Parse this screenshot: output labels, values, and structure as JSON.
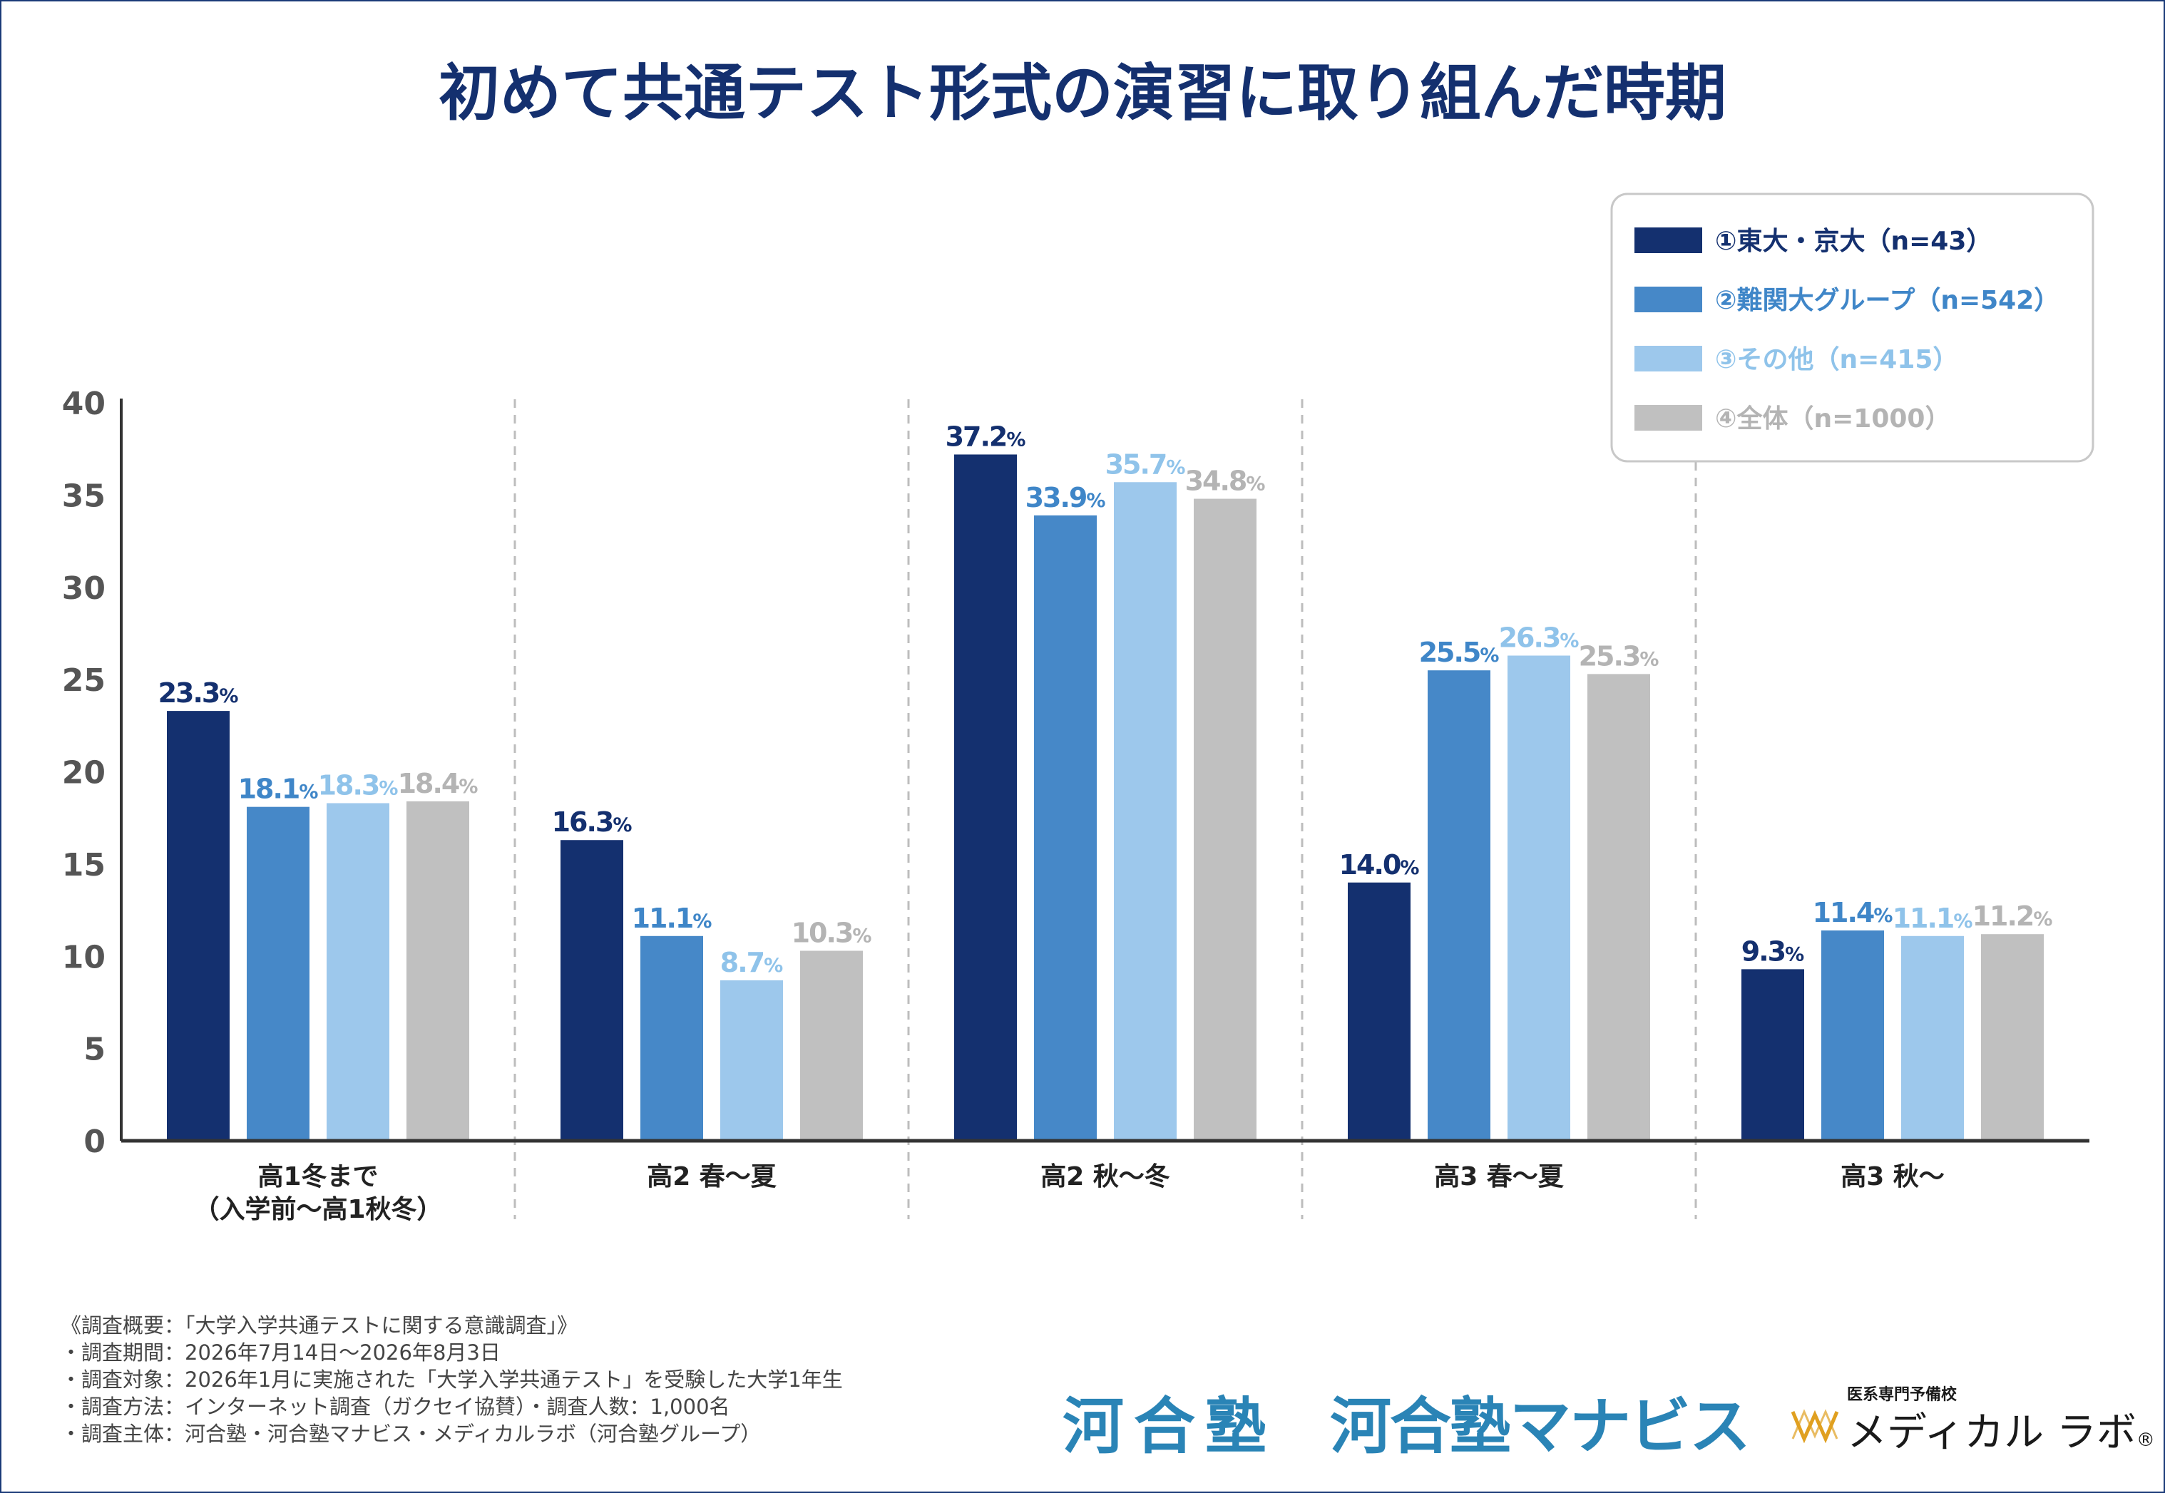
{
  "chart_data": {
    "type": "bar",
    "title": "初めて共通テスト形式の演習に取り組んだ時期",
    "categories": [
      [
        "高1冬まで",
        "（入学前〜高1秋冬）"
      ],
      [
        "高2 春〜夏"
      ],
      [
        "高2 秋〜冬"
      ],
      [
        "高3 春〜夏"
      ],
      [
        "高3 秋〜"
      ]
    ],
    "series": [
      {
        "name": "①東大・京大（n=43）",
        "color": "#14306f",
        "labelColor": "#14306f",
        "values": [
          23.3,
          16.3,
          37.2,
          14.0,
          9.3
        ]
      },
      {
        "name": "②難関大グループ（n=542）",
        "color": "#4688c8",
        "labelColor": "#3f86c8",
        "values": [
          18.1,
          11.1,
          33.9,
          25.5,
          11.4
        ]
      },
      {
        "name": "③その他（n=415）",
        "color": "#9dc8ec",
        "labelColor": "#8fc3ea",
        "values": [
          18.3,
          8.7,
          35.7,
          26.3,
          11.1
        ]
      },
      {
        "name": "④全体（n=1000）",
        "color": "#c0c0c0",
        "labelColor": "#b4b4b4",
        "values": [
          18.4,
          10.3,
          34.8,
          25.3,
          11.2
        ]
      }
    ],
    "value_suffix": "%",
    "ylim": [
      0,
      40
    ],
    "yticks": [
      0,
      5,
      10,
      15,
      20,
      25,
      30,
      35,
      40
    ],
    "legend_position": "top-right",
    "grid": false,
    "category_separators": "dashed"
  },
  "footer": {
    "notes": [
      "《調査概要：「大学入学共通テストに関する意識調査」》",
      "・調査期間：2026年7月14日〜2026年8月3日",
      "・調査対象：2026年1月に実施された「大学入学共通テスト」を受験した大学1年生",
      "・調査方法：インターネット調査（ガクセイ協賛）・調査人数：1,000名",
      "・調査主体：河合塾・河合塾マナビス・メディカルラボ（河合塾グループ）"
    ]
  },
  "logos": {
    "kawai": "河合塾",
    "manabis": "河合塾マナビス",
    "medical_sub": "医系専門予備校",
    "medical": "メディカル ラボ",
    "medical_reg": "®"
  },
  "colors": {
    "title": "#14306f",
    "axis": "#333333",
    "tick_label": "#555555",
    "separator": "#bdbdbd",
    "logo": "#2a84b6"
  }
}
